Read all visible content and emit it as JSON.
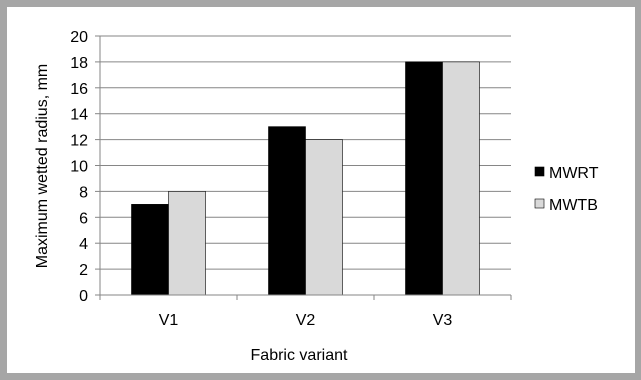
{
  "chart_data": {
    "type": "bar",
    "categories": [
      "V1",
      "V2",
      "V3"
    ],
    "series": [
      {
        "name": "MWRT",
        "values": [
          7,
          13,
          18
        ],
        "color": "#000000"
      },
      {
        "name": "MWTB",
        "values": [
          8,
          12,
          18
        ],
        "color": "#d9d9d9"
      }
    ],
    "title": "",
    "xlabel": "Fabric variant",
    "ylabel": "Maximum wetted radius, mm",
    "ylim": [
      0,
      20
    ],
    "yticks": [
      "0",
      "2",
      "4",
      "6",
      "8",
      "10",
      "12",
      "14",
      "16",
      "18",
      "20"
    ],
    "grid": "horizontal",
    "legend_position": "right"
  }
}
